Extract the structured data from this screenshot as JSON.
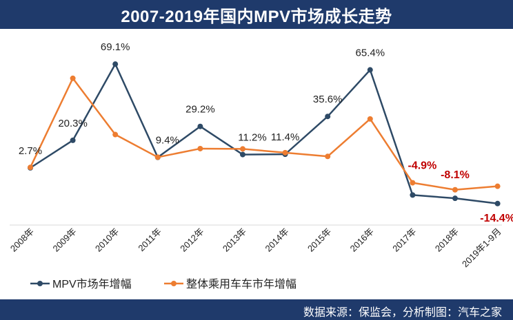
{
  "header": {
    "title": "2007-2019年国内MPV市场成长走势"
  },
  "footer": {
    "source": "数据来源：保监会，分析制图：汽车之家"
  },
  "chart_data": {
    "type": "line",
    "title": "2007-2019年国内MPV市场成长走势",
    "categories": [
      "2008年",
      "2009年",
      "2010年",
      "2011年",
      "2012年",
      "2013年",
      "2014年",
      "2015年",
      "2016年",
      "2017年",
      "2018年",
      "2019年1-9月"
    ],
    "series": [
      {
        "name": "MPV市场年增幅",
        "color": "#2e4a66",
        "values": [
          2.7,
          20.3,
          69.1,
          9.4,
          29.2,
          11.2,
          11.4,
          35.6,
          65.4,
          -10.5,
          -12.0,
          -14.4
        ],
        "labels": [
          "2.7%",
          "20.3%",
          "69.1%",
          "9.4%",
          "29.2%",
          "11.2%",
          "11.4%",
          "35.6%",
          "65.4%",
          "",
          "",
          "-14.4%"
        ]
      },
      {
        "name": "整体乘用车车市年增幅",
        "color": "#ed7d31",
        "values": [
          3,
          60,
          24,
          9.5,
          15,
          14.8,
          12.4,
          10,
          34,
          -4.9,
          -8.1,
          -6.5
        ],
        "labels": [
          "",
          "",
          "",
          "",
          "",
          "",
          "",
          "",
          "",
          "-4.9%",
          "-8.1%",
          ""
        ]
      }
    ],
    "grid": false,
    "legend_position": "bottom-left",
    "negative_label_color": "#c00000"
  }
}
